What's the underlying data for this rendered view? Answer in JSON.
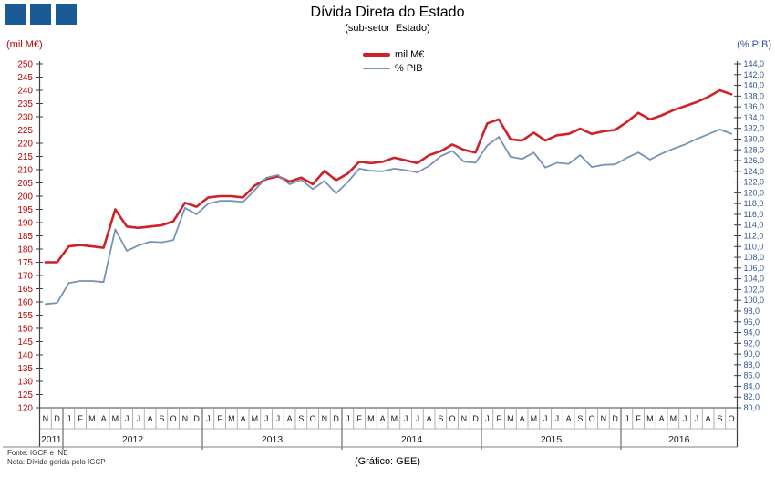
{
  "logo": {
    "color": "#1A5B96",
    "squares": 3
  },
  "title": "Dívida Direta do Estado",
  "subtitle": "(sub-setor  Estado)",
  "left_axis_unit": "(mil M€)",
  "right_axis_unit": "(% PIB)",
  "legend": [
    {
      "label": "mil M€",
      "color": "#CF2128",
      "thickness": 4
    },
    {
      "label": "% PIB",
      "color": "#7593B7",
      "thickness": 2
    }
  ],
  "footer": {
    "source": "Fonte: IGCP e INE",
    "note": "Nota: Dívida gerida pelo IGCP",
    "credit": "(Gráfico: GEE)"
  },
  "chart_data": {
    "type": "line",
    "x_months": [
      "N",
      "D",
      "J",
      "F",
      "M",
      "A",
      "M",
      "J",
      "J",
      "A",
      "S",
      "O",
      "N",
      "D",
      "J",
      "F",
      "M",
      "A",
      "M",
      "J",
      "J",
      "A",
      "S",
      "O",
      "N",
      "D",
      "J",
      "F",
      "M",
      "A",
      "M",
      "J",
      "J",
      "A",
      "S",
      "O",
      "N",
      "D",
      "J",
      "F",
      "M",
      "A",
      "M",
      "J",
      "J",
      "A",
      "S",
      "O",
      "N",
      "D",
      "J",
      "F",
      "M",
      "A",
      "M",
      "J",
      "J",
      "A",
      "S",
      "O"
    ],
    "year_groups": [
      {
        "label": "2011",
        "months": 2
      },
      {
        "label": "2012",
        "months": 12
      },
      {
        "label": "2013",
        "months": 12
      },
      {
        "label": "2014",
        "months": 12
      },
      {
        "label": "2015",
        "months": 12
      },
      {
        "label": "2016",
        "months": 10
      }
    ],
    "left_axis": {
      "min": 120,
      "max": 250,
      "step": 5,
      "color": "#C00000"
    },
    "right_axis": {
      "min": 80,
      "max": 144,
      "step": 2,
      "color": "#2E5693",
      "decimal_comma": true
    },
    "series": [
      {
        "name": "mil M€",
        "axis": "left",
        "color": "#CF2128",
        "width": 2.6,
        "values": [
          175.0,
          175.0,
          181.0,
          181.5,
          181.0,
          180.5,
          195.0,
          188.5,
          188.0,
          188.5,
          189.0,
          190.5,
          197.5,
          196.0,
          199.5,
          200.0,
          200.0,
          199.5,
          204.0,
          206.5,
          207.5,
          205.5,
          207.0,
          204.5,
          209.5,
          206.0,
          208.5,
          213.0,
          212.5,
          213.0,
          214.5,
          213.5,
          212.5,
          215.5,
          217.0,
          219.5,
          217.5,
          216.5,
          227.5,
          229.0,
          221.5,
          221.0,
          224.0,
          221.0,
          223.0,
          223.5,
          225.5,
          223.5,
          224.5,
          225.0,
          228.0,
          231.5,
          229.0,
          230.5,
          232.5,
          234.0,
          235.5,
          237.5,
          240.0,
          238.5
        ]
      },
      {
        "name": "% PIB",
        "axis": "right",
        "color": "#7593B7",
        "width": 1.8,
        "values": [
          99.3,
          99.5,
          103.2,
          103.6,
          103.6,
          103.4,
          113.2,
          109.2,
          110.2,
          110.9,
          110.8,
          111.2,
          117.2,
          116.0,
          118.0,
          118.5,
          118.5,
          118.3,
          120.5,
          122.8,
          123.3,
          121.6,
          122.4,
          120.7,
          122.2,
          119.9,
          122.0,
          124.5,
          124.1,
          124.0,
          124.5,
          124.2,
          123.8,
          125.0,
          126.8,
          127.8,
          125.8,
          125.6,
          128.8,
          130.4,
          126.7,
          126.3,
          127.5,
          124.7,
          125.6,
          125.4,
          127.0,
          124.8,
          125.2,
          125.3,
          126.5,
          127.5,
          126.2,
          127.3,
          128.2,
          129.0,
          130.0,
          130.9,
          131.8,
          131.0
        ]
      }
    ]
  }
}
